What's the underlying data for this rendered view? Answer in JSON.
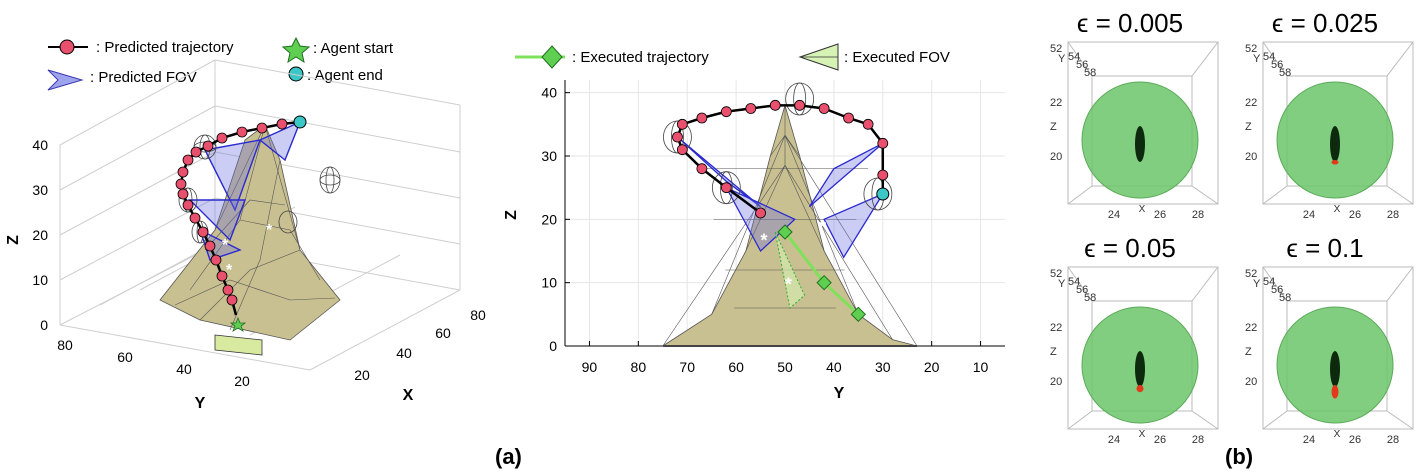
{
  "figure_labels": {
    "a": "(a)",
    "b": "(b)"
  },
  "colors": {
    "trajectory_marker": "#e8506e",
    "agent_start": "#5fcf52",
    "agent_end": "#3cc7c7",
    "executed": "#7fe05a",
    "fov_blue": "#6d6fe0",
    "surface": "#c9c091",
    "sphere": "#6cc56a",
    "points_dark": "#0e2a0e",
    "points_red": "#e23a1a"
  },
  "legend": {
    "predicted_trajectory": ": Predicted trajectory",
    "predicted_fov": ": Predicted FOV",
    "agent_start": ": Agent start",
    "agent_end": ": Agent end",
    "executed_trajectory": ": Executed trajectory",
    "executed_fov": ": Executed FOV"
  },
  "chart_data": [
    {
      "type": "line",
      "id": "predicted-3d",
      "zlabel": "Z",
      "ylabel": "Y",
      "xlabel": "X",
      "z_ticks": [
        "0",
        "10",
        "20",
        "30",
        "40"
      ],
      "y_ticks": [
        "80",
        "60",
        "40",
        "20"
      ],
      "x_ticks": [
        "20",
        "40",
        "60",
        "80"
      ],
      "zlim": [
        0,
        40
      ]
    },
    {
      "type": "line",
      "id": "executed-2d",
      "xlabel": "Y",
      "ylabel": "Z",
      "x_ticks": [
        90,
        80,
        70,
        60,
        50,
        40,
        30,
        20,
        10
      ],
      "y_ticks": [
        0,
        10,
        20,
        30,
        40
      ],
      "xlim": [
        95,
        5
      ],
      "ylim": [
        0,
        42
      ],
      "surface": {
        "x": [
          75,
          65,
          58,
          53,
          50,
          47,
          42,
          35,
          28,
          23
        ],
        "z": [
          0,
          5,
          15,
          30,
          38,
          30,
          15,
          5,
          1,
          0
        ]
      },
      "predicted_trajectory": {
        "x": [
          55,
          62,
          67,
          71,
          72,
          71,
          67,
          62,
          57,
          52,
          47,
          42,
          37,
          33,
          30,
          30,
          30
        ],
        "z": [
          21,
          25,
          28,
          31,
          33,
          35,
          36,
          37,
          37.5,
          38,
          38,
          37.5,
          36,
          35,
          32,
          27,
          24
        ]
      },
      "executed_trajectory": {
        "x": [
          50,
          42,
          35
        ],
        "z": [
          18,
          10,
          5
        ]
      }
    },
    {
      "type": "scatter",
      "id": "epsilon-grid",
      "panels": [
        {
          "title": "ϵ = 0.005",
          "red_fraction": 0.0
        },
        {
          "title": "ϵ = 0.025",
          "red_fraction": 0.05
        },
        {
          "title": "ϵ = 0.05",
          "red_fraction": 0.08
        },
        {
          "title": "ϵ = 0.1",
          "red_fraction": 0.15
        }
      ],
      "y_ticks": [
        "52",
        "54",
        "56",
        "58"
      ],
      "z_ticks": [
        "22",
        "20"
      ],
      "x_ticks": [
        "24",
        "26",
        "28"
      ],
      "ylabel": "Y",
      "zlabel": "Z",
      "xlabel": "X"
    }
  ]
}
